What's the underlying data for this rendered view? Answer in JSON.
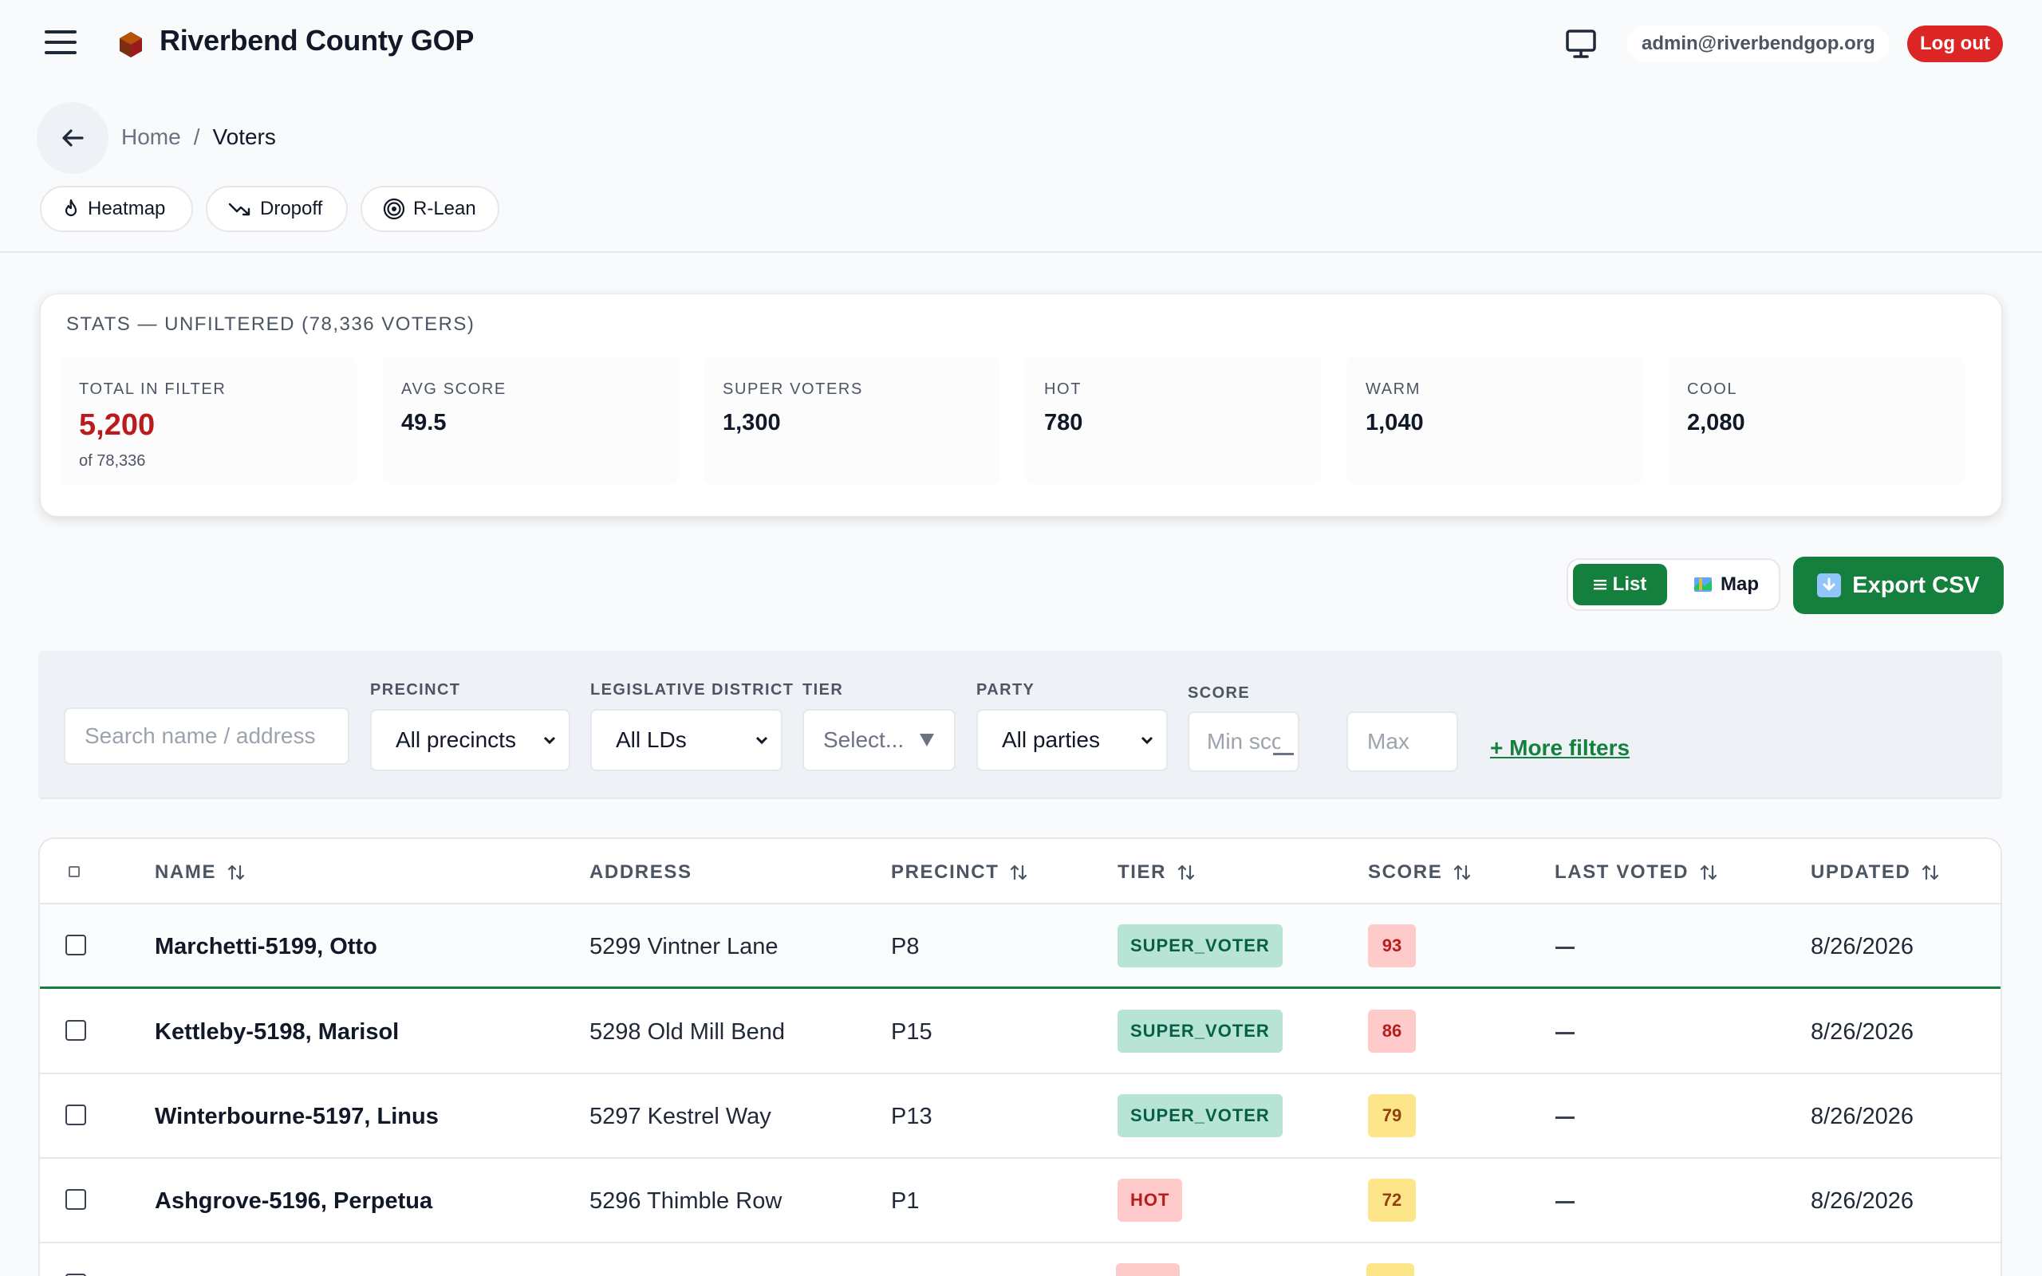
{
  "header": {
    "brand": "Riverbend County GOP",
    "user_email": "admin@riverbendgop.org",
    "logout_label": "Log out"
  },
  "breadcrumb": {
    "home": "Home",
    "separator": "/",
    "current": "Voters"
  },
  "quick_links": [
    {
      "label": "Heatmap",
      "icon": "flame-icon"
    },
    {
      "label": "Dropoff",
      "icon": "trend-down-icon"
    },
    {
      "label": "R-Lean",
      "icon": "target-icon"
    }
  ],
  "stats": {
    "title": "STATS — UNFILTERED (78,336 VOTERS)",
    "items": [
      {
        "label": "TOTAL IN FILTER",
        "value": "5,200",
        "sub": "of 78,336"
      },
      {
        "label": "AVG SCORE",
        "value": "49.5"
      },
      {
        "label": "SUPER VOTERS",
        "value": "1,300"
      },
      {
        "label": "HOT",
        "value": "780"
      },
      {
        "label": "WARM",
        "value": "1,040"
      },
      {
        "label": "COOL",
        "value": "2,080"
      }
    ]
  },
  "view_toggle": {
    "list_label": "List",
    "map_label": "Map",
    "active": "List"
  },
  "export_label": "Export CSV",
  "filters": {
    "search_placeholder": "Search name / address",
    "precinct_label": "PRECINCT",
    "precinct_value": "All precincts",
    "ld_label": "LEGISLATIVE DISTRICT",
    "ld_value": "All LDs",
    "tier_label": "TIER",
    "tier_value": "Select...",
    "party_label": "PARTY",
    "party_value": "All parties",
    "score_label": "SCORE",
    "score_min_placeholder": "Min score",
    "score_max_placeholder": "Max",
    "more_filters": "+ More filters"
  },
  "table": {
    "columns": [
      "NAME",
      "ADDRESS",
      "PRECINCT",
      "TIER",
      "SCORE",
      "LAST VOTED",
      "UPDATED"
    ],
    "rows": [
      {
        "name": "Marchetti-5199, Otto",
        "address": "5299 Vintner Lane",
        "precinct": "P8",
        "tier": "SUPER_VOTER",
        "score": "93",
        "last_voted": "—",
        "updated": "8/26/2026"
      },
      {
        "name": "Kettleby-5198, Marisol",
        "address": "5298 Old Mill Bend",
        "precinct": "P15",
        "tier": "SUPER_VOTER",
        "score": "86",
        "last_voted": "—",
        "updated": "8/26/2026"
      },
      {
        "name": "Winterbourne-5197, Linus",
        "address": "5297 Kestrel Way",
        "precinct": "P13",
        "tier": "SUPER_VOTER",
        "score": "79",
        "last_voted": "—",
        "updated": "8/26/2026"
      },
      {
        "name": "Ashgrove-5196, Perpetua",
        "address": "5296 Thimble Row",
        "precinct": "P1",
        "tier": "HOT",
        "score": "72",
        "last_voted": "—",
        "updated": "8/26/2026"
      }
    ]
  },
  "colors": {
    "accent_green": "#15803d",
    "danger_red": "#dc2626",
    "stat_highlight": "#b91c1c"
  }
}
